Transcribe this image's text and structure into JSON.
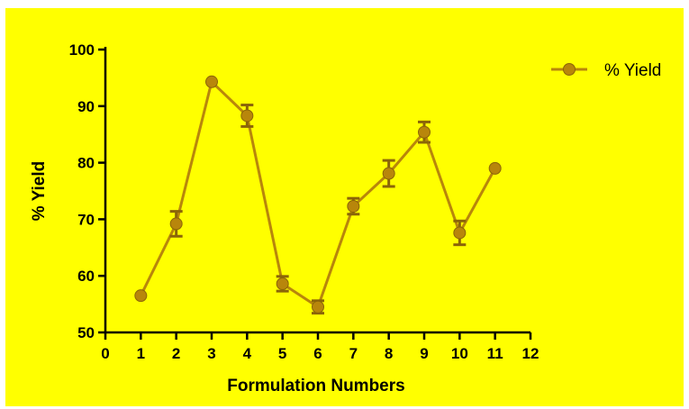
{
  "chart_data": {
    "type": "line",
    "title": "",
    "xlabel": "Formulation Numbers",
    "ylabel": "% Yield",
    "xlim": [
      0,
      12
    ],
    "ylim": [
      50,
      100
    ],
    "x_ticks": [
      "0",
      "1",
      "2",
      "3",
      "4",
      "5",
      "6",
      "7",
      "8",
      "9",
      "10",
      "11",
      "12"
    ],
    "y_ticks": [
      "50",
      "60",
      "70",
      "80",
      "90",
      "100"
    ],
    "grid": false,
    "legend_position": "top-right",
    "background_color": "#ffff00",
    "series": [
      {
        "name": "% Yield",
        "color": "#b8860b",
        "x": [
          1,
          2,
          3,
          4,
          5,
          6,
          7,
          8,
          9,
          10,
          11
        ],
        "y": [
          56.5,
          69.2,
          94.3,
          88.3,
          58.6,
          54.5,
          72.3,
          78.1,
          85.4,
          67.6,
          79.0
        ],
        "error": [
          0.3,
          2.2,
          0.4,
          1.9,
          1.3,
          1.1,
          1.4,
          2.3,
          1.8,
          2.1,
          0.3
        ]
      }
    ]
  }
}
